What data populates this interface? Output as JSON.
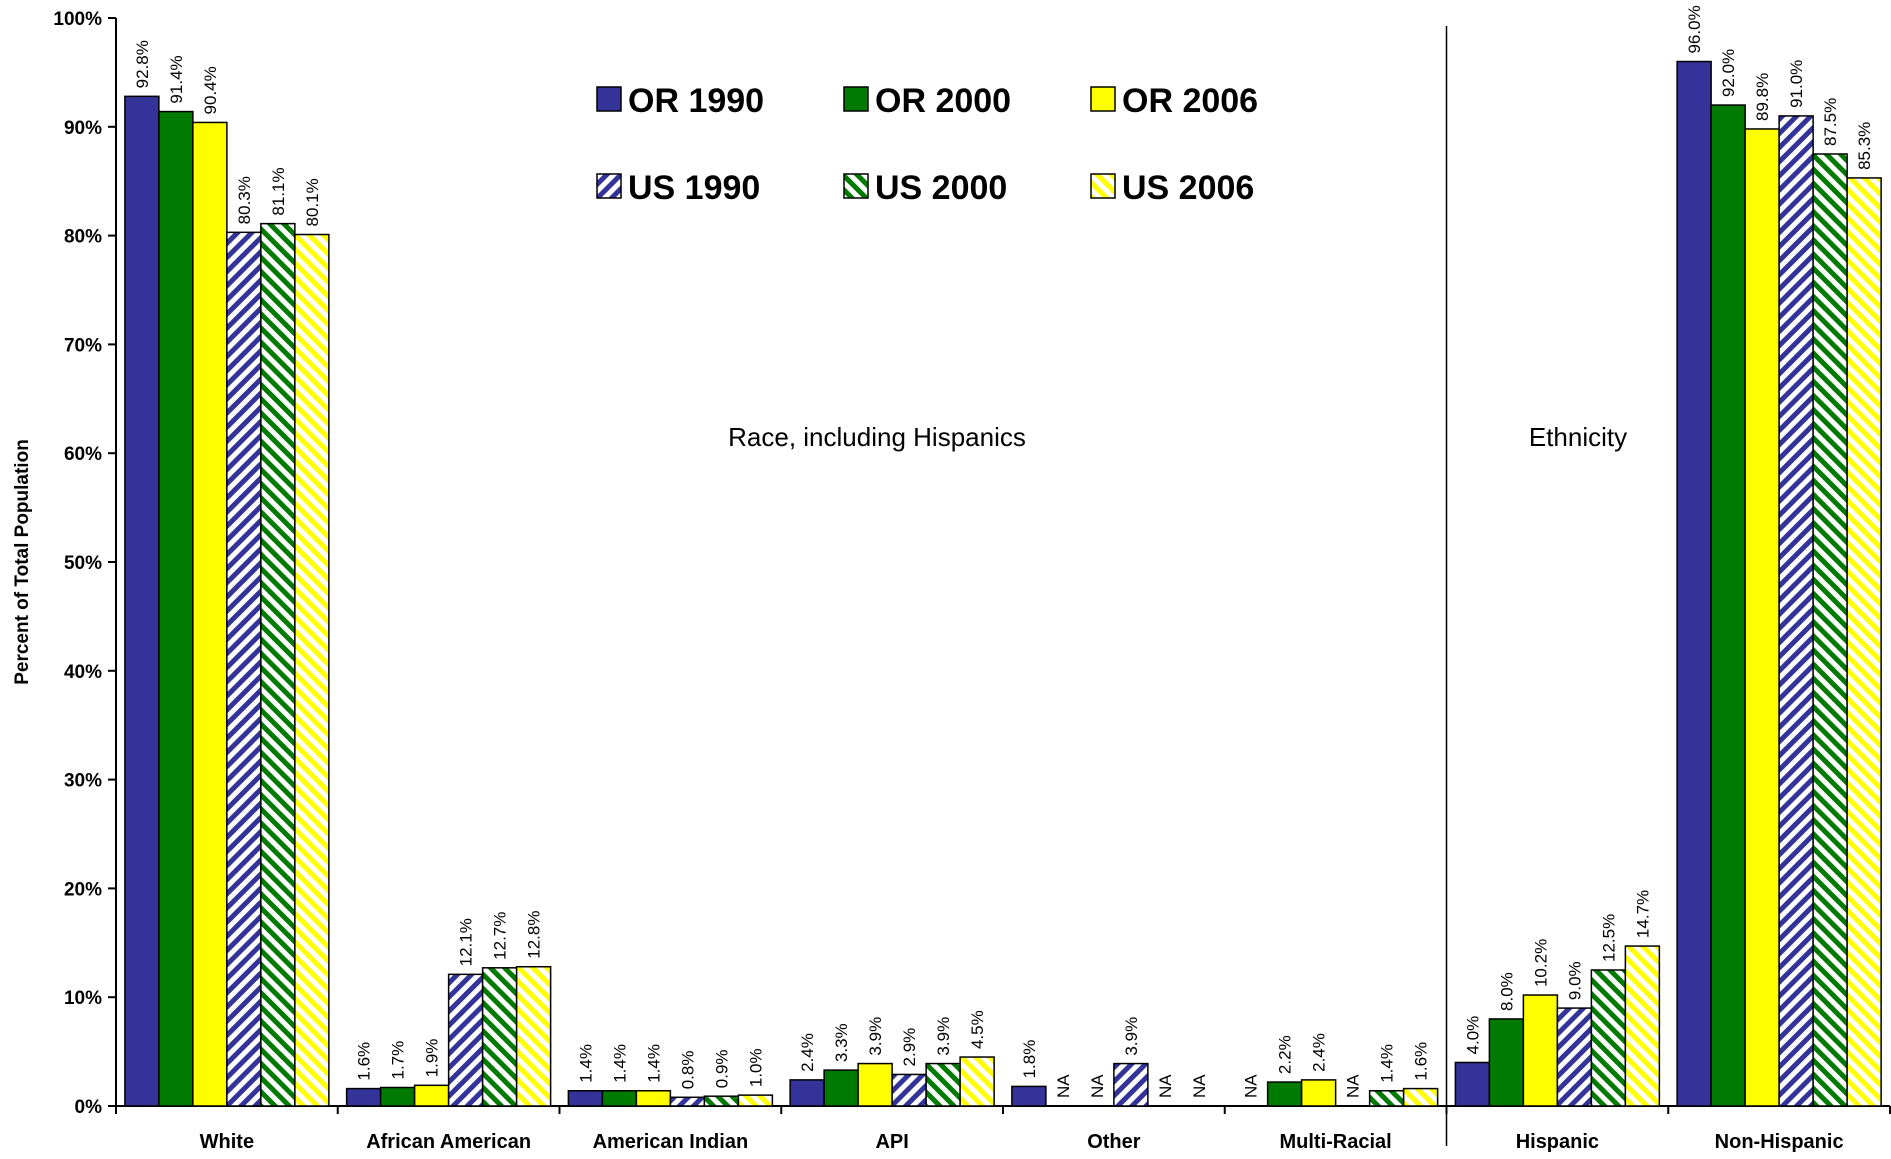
{
  "chart_data": {
    "type": "bar",
    "ylabel": "Percent of Total Population",
    "ylim": [
      0,
      100
    ],
    "yticks": [
      "0%",
      "10%",
      "20%",
      "30%",
      "40%",
      "50%",
      "60%",
      "70%",
      "80%",
      "90%",
      "100%"
    ],
    "categories": [
      "White",
      "African American",
      "American Indian",
      "API",
      "Other",
      "Multi-Racial",
      "Hispanic",
      "Non-Hispanic"
    ],
    "section_labels": [
      "Race, including Hispanics",
      "Ethnicity"
    ],
    "legend_placement": "top-center",
    "grid": false,
    "series": [
      {
        "name": "OR 1990",
        "color": "#333399",
        "pattern": "solid",
        "values": [
          92.8,
          1.6,
          1.4,
          2.4,
          1.8,
          null,
          4.0,
          96.0
        ],
        "labels": [
          "92.8%",
          "1.6%",
          "1.4%",
          "2.4%",
          "1.8%",
          "NA",
          "4.0%",
          "96.0%"
        ]
      },
      {
        "name": "OR 2000",
        "color": "#007A00",
        "pattern": "solid",
        "values": [
          91.4,
          1.7,
          1.4,
          3.3,
          null,
          2.2,
          8.0,
          92.0
        ],
        "labels": [
          "91.4%",
          "1.7%",
          "1.4%",
          "3.3%",
          "NA",
          "2.2%",
          "8.0%",
          "92.0%"
        ]
      },
      {
        "name": "OR 2006",
        "color": "#FFFF00",
        "pattern": "solid",
        "values": [
          90.4,
          1.9,
          1.4,
          3.9,
          null,
          2.4,
          10.2,
          89.8
        ],
        "labels": [
          "90.4%",
          "1.9%",
          "1.4%",
          "3.9%",
          "NA",
          "2.4%",
          "10.2%",
          "89.8%"
        ]
      },
      {
        "name": "US 1990",
        "color": "#333399",
        "pattern": "diagonal",
        "values": [
          80.3,
          12.1,
          0.8,
          2.9,
          3.9,
          null,
          9.0,
          91.0
        ],
        "labels": [
          "80.3%",
          "12.1%",
          "0.8%",
          "2.9%",
          "3.9%",
          "NA",
          "9.0%",
          "91.0%"
        ]
      },
      {
        "name": "US 2000",
        "color": "#007A00",
        "pattern": "diagonal",
        "values": [
          81.1,
          12.7,
          0.9,
          3.9,
          null,
          1.4,
          12.5,
          87.5
        ],
        "labels": [
          "81.1%",
          "12.7%",
          "0.9%",
          "3.9%",
          "NA",
          "1.4%",
          "12.5%",
          "87.5%"
        ]
      },
      {
        "name": "US 2006",
        "color": "#FFFF00",
        "pattern": "diagonal",
        "values": [
          80.1,
          12.8,
          1.0,
          4.5,
          null,
          1.6,
          14.7,
          85.3
        ],
        "labels": [
          "80.1%",
          "12.8%",
          "1.0%",
          "4.5%",
          "NA",
          "1.6%",
          "14.7%",
          "85.3%"
        ]
      }
    ]
  }
}
